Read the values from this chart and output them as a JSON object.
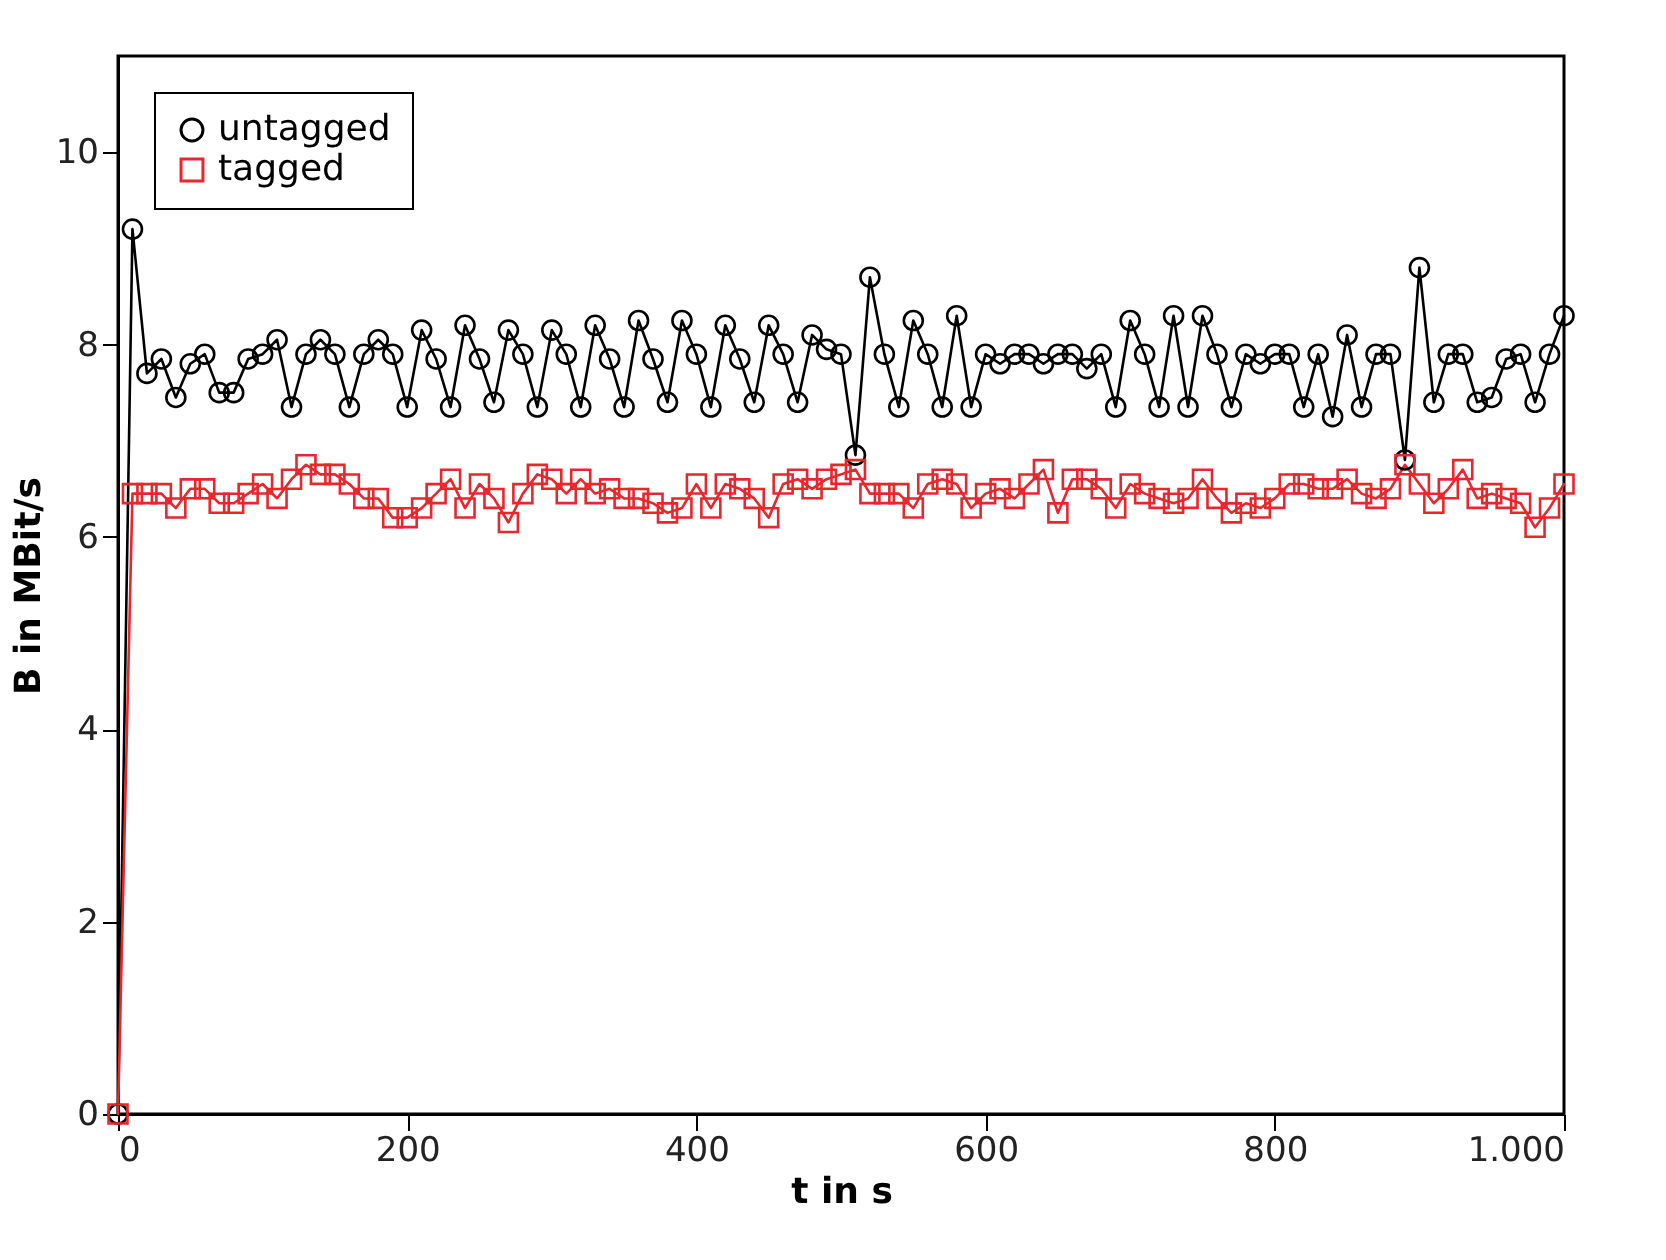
{
  "chart_data": {
    "type": "line",
    "xlabel": "t in s",
    "ylabel": "B in MBit/s",
    "x": [
      0,
      10,
      20,
      30,
      40,
      50,
      60,
      70,
      80,
      90,
      100,
      110,
      120,
      130,
      140,
      150,
      160,
      170,
      180,
      190,
      200,
      210,
      220,
      230,
      240,
      250,
      260,
      270,
      280,
      290,
      300,
      310,
      320,
      330,
      340,
      350,
      360,
      370,
      380,
      390,
      400,
      410,
      420,
      430,
      440,
      450,
      460,
      470,
      480,
      490,
      500,
      510,
      520,
      530,
      540,
      550,
      560,
      570,
      580,
      590,
      600,
      610,
      620,
      630,
      640,
      650,
      660,
      670,
      680,
      690,
      700,
      710,
      720,
      730,
      740,
      750,
      760,
      770,
      780,
      790,
      800,
      810,
      820,
      830,
      840,
      850,
      860,
      870,
      880,
      890,
      900,
      910,
      920,
      930,
      940,
      950,
      960,
      970,
      980,
      990,
      1000
    ],
    "series": [
      {
        "name": "untagged",
        "color": "#000000",
        "marker": "circle",
        "values": [
          0,
          9.2,
          7.7,
          7.85,
          7.45,
          7.8,
          7.9,
          7.5,
          7.5,
          7.85,
          7.9,
          8.05,
          7.35,
          7.9,
          8.05,
          7.9,
          7.35,
          7.9,
          8.05,
          7.9,
          7.35,
          8.15,
          7.85,
          7.35,
          8.2,
          7.85,
          7.4,
          8.15,
          7.9,
          7.35,
          8.15,
          7.9,
          7.35,
          8.2,
          7.85,
          7.35,
          8.25,
          7.85,
          7.4,
          8.25,
          7.9,
          7.35,
          8.2,
          7.85,
          7.4,
          8.2,
          7.9,
          7.4,
          8.1,
          7.95,
          7.9,
          6.85,
          8.7,
          7.9,
          7.35,
          8.25,
          7.9,
          7.35,
          8.3,
          7.35,
          7.9,
          7.8,
          7.9,
          7.9,
          7.8,
          7.9,
          7.9,
          7.75,
          7.9,
          7.35,
          8.25,
          7.9,
          7.35,
          8.3,
          7.35,
          8.3,
          7.9,
          7.35,
          7.9,
          7.8,
          7.9,
          7.9,
          7.35,
          7.9,
          7.25,
          8.1,
          7.35,
          7.9,
          7.9,
          6.8,
          8.8,
          7.4,
          7.9,
          7.9,
          7.4,
          7.45,
          7.85,
          7.9,
          7.4,
          7.9,
          8.3
        ]
      },
      {
        "name": "tagged",
        "color": "#e8262c",
        "marker": "square",
        "values": [
          0,
          6.45,
          6.45,
          6.45,
          6.3,
          6.5,
          6.5,
          6.35,
          6.35,
          6.45,
          6.55,
          6.4,
          6.6,
          6.75,
          6.65,
          6.65,
          6.55,
          6.4,
          6.4,
          6.2,
          6.2,
          6.3,
          6.45,
          6.6,
          6.3,
          6.55,
          6.4,
          6.15,
          6.45,
          6.65,
          6.6,
          6.45,
          6.6,
          6.45,
          6.5,
          6.4,
          6.4,
          6.35,
          6.25,
          6.3,
          6.55,
          6.3,
          6.55,
          6.5,
          6.4,
          6.2,
          6.55,
          6.6,
          6.5,
          6.6,
          6.65,
          6.7,
          6.45,
          6.45,
          6.45,
          6.3,
          6.55,
          6.6,
          6.55,
          6.3,
          6.45,
          6.5,
          6.4,
          6.55,
          6.7,
          6.25,
          6.6,
          6.6,
          6.5,
          6.3,
          6.55,
          6.45,
          6.4,
          6.35,
          6.4,
          6.6,
          6.4,
          6.25,
          6.35,
          6.3,
          6.4,
          6.55,
          6.55,
          6.5,
          6.5,
          6.6,
          6.45,
          6.4,
          6.5,
          6.75,
          6.55,
          6.35,
          6.5,
          6.7,
          6.4,
          6.45,
          6.4,
          6.35,
          6.1,
          6.3,
          6.55
        ]
      }
    ],
    "xlim": [
      0,
      1000
    ],
    "xticks": [
      0,
      200,
      400,
      600,
      800,
      {
        "value": 1000,
        "label": "1.000"
      }
    ],
    "ylim": [
      0,
      11
    ],
    "yticks": [
      0,
      2,
      4,
      6,
      8,
      10
    ],
    "grid": false,
    "legend": "top left",
    "line_style": "solid"
  }
}
